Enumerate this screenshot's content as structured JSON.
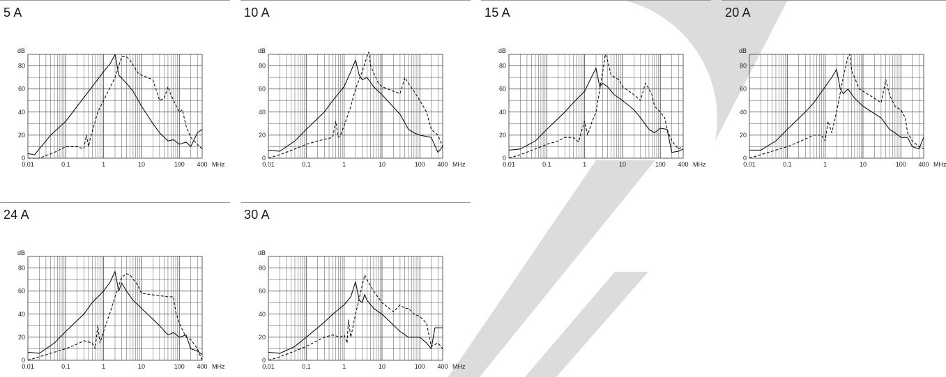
{
  "colors": {
    "watermark": "#dcdcdc",
    "grid": "#555555",
    "line": "#111111"
  },
  "chart_data": [
    {
      "type": "line",
      "title": "5 A",
      "ylabel": "dB",
      "xunit": "MHz",
      "xscale": "log",
      "xlim": [
        0.01,
        400
      ],
      "ylim": [
        0,
        90
      ],
      "xticks": [
        "0.01",
        "0.1",
        "1",
        "10",
        "100",
        "400"
      ],
      "yticks": [
        "0",
        "20",
        "40",
        "60",
        "80"
      ],
      "series": [
        {
          "style": "solid",
          "x": [
            0.01,
            0.015,
            0.02,
            0.04,
            0.1,
            0.2,
            0.5,
            1,
            1.5,
            2,
            2.5,
            4,
            6,
            10,
            20,
            30,
            50,
            70,
            100,
            150,
            200,
            300,
            400
          ],
          "y": [
            4,
            3,
            8,
            20,
            32,
            45,
            62,
            75,
            82,
            90,
            72,
            65,
            58,
            45,
            30,
            22,
            15,
            16,
            12,
            14,
            10,
            22,
            25
          ]
        },
        {
          "style": "dashed",
          "x": [
            0.01,
            0.02,
            0.05,
            0.1,
            0.2,
            0.3,
            0.35,
            0.4,
            0.45,
            0.5,
            0.7,
            1,
            2,
            3,
            4,
            5,
            8,
            10,
            20,
            30,
            40,
            50,
            60,
            70,
            100,
            120,
            150,
            200,
            300,
            400
          ],
          "y": [
            0,
            0,
            5,
            10,
            10,
            8,
            20,
            10,
            18,
            23,
            40,
            50,
            70,
            88,
            88,
            85,
            74,
            72,
            68,
            50,
            52,
            62,
            55,
            50,
            40,
            42,
            28,
            18,
            12,
            8
          ]
        }
      ]
    },
    {
      "type": "line",
      "title": "10 A",
      "ylabel": "dB",
      "xunit": "MHz",
      "xscale": "log",
      "xlim": [
        0.01,
        400
      ],
      "ylim": [
        0,
        90
      ],
      "xticks": [
        "0.01",
        "0.1",
        "1",
        "10",
        "100",
        "400"
      ],
      "yticks": [
        "0",
        "20",
        "40",
        "60",
        "80"
      ],
      "series": [
        {
          "style": "solid",
          "x": [
            0.01,
            0.02,
            0.05,
            0.1,
            0.3,
            0.5,
            1,
            1.5,
            2,
            2.5,
            3,
            4,
            6,
            10,
            30,
            50,
            70,
            100,
            200,
            300,
            400
          ],
          "y": [
            7,
            6,
            15,
            25,
            40,
            50,
            62,
            75,
            85,
            72,
            68,
            70,
            62,
            55,
            38,
            25,
            22,
            20,
            18,
            5,
            10
          ]
        },
        {
          "style": "dashed",
          "x": [
            0.01,
            0.02,
            0.05,
            0.1,
            0.2,
            0.5,
            0.6,
            0.7,
            0.8,
            1,
            1.5,
            2,
            3,
            4,
            4.5,
            5,
            8,
            10,
            20,
            30,
            40,
            50,
            70,
            100,
            150,
            200,
            300,
            400
          ],
          "y": [
            0,
            3,
            8,
            12,
            15,
            18,
            32,
            18,
            20,
            28,
            45,
            60,
            75,
            88,
            92,
            80,
            65,
            62,
            58,
            56,
            70,
            65,
            58,
            50,
            40,
            25,
            20,
            10
          ]
        }
      ]
    },
    {
      "type": "line",
      "title": "15 A",
      "ylabel": "dB",
      "xunit": "MHz",
      "xscale": "log",
      "xlim": [
        0.01,
        400
      ],
      "ylim": [
        0,
        90
      ],
      "xticks": [
        "0.01",
        "0.1",
        "1",
        "10",
        "100",
        "400"
      ],
      "yticks": [
        "0",
        "20",
        "40",
        "60",
        "80"
      ],
      "series": [
        {
          "style": "solid",
          "x": [
            0.01,
            0.02,
            0.05,
            0.1,
            0.3,
            0.5,
            1,
            1.5,
            2,
            2.5,
            3,
            4,
            6,
            10,
            20,
            30,
            50,
            70,
            100,
            150,
            200,
            300,
            400
          ],
          "y": [
            7,
            8,
            15,
            25,
            40,
            48,
            58,
            70,
            78,
            62,
            65,
            62,
            55,
            50,
            42,
            35,
            25,
            22,
            26,
            25,
            5,
            6,
            8
          ]
        },
        {
          "style": "dashed",
          "x": [
            0.01,
            0.02,
            0.05,
            0.1,
            0.2,
            0.3,
            0.5,
            0.7,
            0.8,
            1,
            1.2,
            1.5,
            2,
            3,
            3.5,
            4,
            5,
            8,
            10,
            20,
            30,
            40,
            50,
            60,
            70,
            100,
            130,
            150,
            200,
            300,
            400
          ],
          "y": [
            0,
            3,
            8,
            12,
            15,
            18,
            18,
            14,
            22,
            32,
            20,
            30,
            40,
            75,
            90,
            85,
            72,
            68,
            62,
            55,
            50,
            65,
            60,
            55,
            45,
            40,
            35,
            25,
            15,
            8,
            10
          ]
        }
      ]
    },
    {
      "type": "line",
      "title": "20 A",
      "ylabel": "dB",
      "xunit": "MHz",
      "xscale": "log",
      "xlim": [
        0.01,
        400
      ],
      "ylim": [
        0,
        90
      ],
      "xticks": [
        "0.01",
        "0.1",
        "1",
        "10",
        "100",
        "400"
      ],
      "yticks": [
        "0",
        "20",
        "40",
        "60",
        "80"
      ],
      "series": [
        {
          "style": "solid",
          "x": [
            0.01,
            0.02,
            0.05,
            0.1,
            0.3,
            0.5,
            1,
            1.5,
            2,
            2.5,
            3,
            4,
            6,
            10,
            30,
            50,
            70,
            100,
            150,
            200,
            300,
            400
          ],
          "y": [
            7,
            7,
            15,
            25,
            40,
            48,
            62,
            70,
            77,
            60,
            56,
            60,
            52,
            45,
            35,
            25,
            22,
            18,
            18,
            10,
            8,
            18
          ]
        },
        {
          "style": "dashed",
          "x": [
            0.01,
            0.02,
            0.05,
            0.1,
            0.2,
            0.5,
            0.8,
            1,
            1.2,
            1.5,
            2,
            3,
            4,
            4.5,
            5,
            8,
            10,
            20,
            30,
            40,
            50,
            70,
            100,
            130,
            150,
            200,
            300,
            400
          ],
          "y": [
            0,
            3,
            7,
            10,
            14,
            20,
            20,
            15,
            32,
            22,
            40,
            70,
            88,
            90,
            76,
            60,
            58,
            52,
            48,
            68,
            55,
            45,
            42,
            35,
            22,
            15,
            10,
            8
          ]
        }
      ]
    },
    {
      "type": "line",
      "title": "24 A",
      "ylabel": "dB",
      "xunit": "MHz",
      "xscale": "log",
      "xlim": [
        0.01,
        400
      ],
      "ylim": [
        0,
        90
      ],
      "xticks": [
        "0.01",
        "0.1",
        "1",
        "10",
        "100",
        "400"
      ],
      "yticks": [
        "0",
        "20",
        "40",
        "60",
        "80"
      ],
      "series": [
        {
          "style": "solid",
          "x": [
            0.01,
            0.02,
            0.05,
            0.1,
            0.3,
            0.5,
            1,
            1.5,
            2,
            2.5,
            3,
            4,
            6,
            10,
            30,
            50,
            70,
            100,
            150,
            200,
            300,
            400
          ],
          "y": [
            7,
            6,
            15,
            25,
            40,
            50,
            60,
            68,
            77,
            60,
            67,
            60,
            52,
            45,
            30,
            22,
            24,
            20,
            22,
            10,
            8,
            5
          ]
        },
        {
          "style": "dashed",
          "x": [
            0.01,
            0.02,
            0.05,
            0.1,
            0.2,
            0.3,
            0.5,
            0.6,
            0.7,
            0.8,
            1,
            1.5,
            2,
            3,
            4,
            5,
            8,
            10,
            30,
            50,
            70,
            80,
            100,
            150,
            200,
            300,
            400
          ],
          "y": [
            0,
            3,
            7,
            10,
            14,
            17,
            15,
            10,
            30,
            15,
            25,
            42,
            55,
            72,
            75,
            74,
            65,
            58,
            56,
            55,
            55,
            42,
            32,
            20,
            18,
            10,
            0
          ]
        }
      ]
    },
    {
      "type": "line",
      "title": "30 A",
      "ylabel": "dB",
      "xunit": "MHz",
      "xscale": "log",
      "xlim": [
        0.01,
        400
      ],
      "ylim": [
        0,
        90
      ],
      "xticks": [
        "0.01",
        "0.1",
        "1",
        "10",
        "100",
        "400"
      ],
      "yticks": [
        "0",
        "20",
        "40",
        "60",
        "80"
      ],
      "series": [
        {
          "style": "solid",
          "x": [
            0.01,
            0.02,
            0.05,
            0.1,
            0.3,
            0.5,
            1,
            1.5,
            2,
            2.5,
            3,
            3.5,
            4,
            6,
            10,
            30,
            50,
            100,
            150,
            200,
            250,
            300,
            400
          ],
          "y": [
            7,
            6,
            12,
            20,
            33,
            40,
            48,
            55,
            68,
            52,
            50,
            57,
            52,
            45,
            40,
            25,
            20,
            20,
            15,
            10,
            28,
            28,
            28
          ]
        },
        {
          "style": "dashed",
          "x": [
            0.01,
            0.02,
            0.05,
            0.1,
            0.3,
            0.5,
            0.8,
            1,
            1.2,
            1.3,
            1.5,
            2,
            3,
            3.5,
            4,
            6,
            10,
            20,
            30,
            40,
            50,
            70,
            100,
            150,
            200,
            300,
            400
          ],
          "y": [
            0,
            3,
            8,
            12,
            20,
            22,
            20,
            22,
            15,
            35,
            20,
            40,
            65,
            74,
            70,
            60,
            50,
            42,
            48,
            45,
            45,
            40,
            38,
            32,
            12,
            15,
            10
          ]
        }
      ]
    }
  ]
}
